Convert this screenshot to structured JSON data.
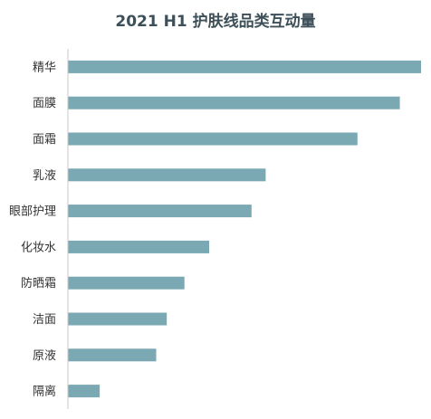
{
  "chart_data": {
    "type": "bar",
    "orientation": "horizontal",
    "title": "2021 H1 护肤线品类互动量",
    "categories": [
      "精华",
      "面膜",
      "面霜",
      "乳液",
      "眼部护理",
      "化妆水",
      "防晒霜",
      "洁面",
      "原液",
      "隔离"
    ],
    "values": [
      100,
      94,
      82,
      56,
      52,
      40,
      33,
      28,
      25,
      9
    ],
    "xlim": [
      0,
      100
    ],
    "grid": false,
    "bar_color": "#7aa9b3",
    "axis_color": "#c8c8c8"
  }
}
